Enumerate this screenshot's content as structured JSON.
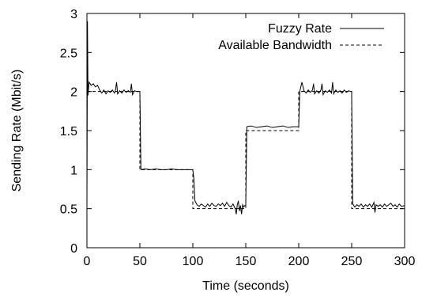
{
  "chart_data": {
    "type": "line",
    "title": "",
    "xlabel": "Time (seconds)",
    "ylabel": "Sending Rate (Mbit/s)",
    "xlim": [
      0,
      300
    ],
    "ylim": [
      0,
      3
    ],
    "xticks": [
      "0",
      "50",
      "100",
      "150",
      "200",
      "250",
      "300"
    ],
    "yticks": [
      "0",
      "0.5",
      "1",
      "1.5",
      "2",
      "2.5",
      "3"
    ],
    "grid": false,
    "legend_position": "top-right",
    "series": [
      {
        "name": "Fuzzy Rate",
        "style": "solid",
        "color": "#000000",
        "points": [
          [
            0,
            0.5
          ],
          [
            0.5,
            2.9
          ],
          [
            1,
            1.95
          ],
          [
            2,
            2.12
          ],
          [
            4,
            2.08
          ],
          [
            6,
            2.1
          ],
          [
            8,
            2.06
          ],
          [
            10,
            2.08
          ],
          [
            12,
            2.02
          ],
          [
            14,
            1.98
          ],
          [
            16,
            2.02
          ],
          [
            18,
            1.97
          ],
          [
            20,
            2.01
          ],
          [
            22,
            1.99
          ],
          [
            24,
            2.02
          ],
          [
            26,
            1.98
          ],
          [
            27,
            2.02
          ],
          [
            28,
            2.12
          ],
          [
            29,
            1.97
          ],
          [
            31,
            2.01
          ],
          [
            33,
            1.98
          ],
          [
            35,
            2.02
          ],
          [
            37,
            1.99
          ],
          [
            39,
            2.01
          ],
          [
            41,
            1.99
          ],
          [
            42,
            2.1
          ],
          [
            43,
            1.96
          ],
          [
            45,
            2.01
          ],
          [
            47,
            2.0
          ],
          [
            49,
            2.0
          ],
          [
            50,
            2.0
          ],
          [
            51,
            1.0
          ],
          [
            55,
            1.01
          ],
          [
            60,
            1.0
          ],
          [
            65,
            1.01
          ],
          [
            70,
            1.0
          ],
          [
            75,
            1.0
          ],
          [
            80,
            1.01
          ],
          [
            85,
            1.0
          ],
          [
            90,
            1.0
          ],
          [
            95,
            1.0
          ],
          [
            100,
            1.0
          ],
          [
            101,
            0.88
          ],
          [
            102,
            0.6
          ],
          [
            104,
            0.55
          ],
          [
            106,
            0.53
          ],
          [
            108,
            0.56
          ],
          [
            110,
            0.54
          ],
          [
            112,
            0.52
          ],
          [
            114,
            0.56
          ],
          [
            116,
            0.53
          ],
          [
            118,
            0.57
          ],
          [
            120,
            0.54
          ],
          [
            122,
            0.53
          ],
          [
            124,
            0.56
          ],
          [
            126,
            0.54
          ],
          [
            128,
            0.57
          ],
          [
            130,
            0.53
          ],
          [
            132,
            0.58
          ],
          [
            134,
            0.54
          ],
          [
            136,
            0.52
          ],
          [
            138,
            0.56
          ],
          [
            140,
            0.5
          ],
          [
            141,
            0.43
          ],
          [
            142,
            0.55
          ],
          [
            143,
            0.6
          ],
          [
            144,
            0.47
          ],
          [
            145,
            0.54
          ],
          [
            146,
            0.43
          ],
          [
            147,
            0.55
          ],
          [
            148,
            0.52
          ],
          [
            149,
            0.54
          ],
          [
            150,
            0.54
          ],
          [
            151,
            1.55
          ],
          [
            155,
            1.56
          ],
          [
            160,
            1.54
          ],
          [
            165,
            1.55
          ],
          [
            170,
            1.56
          ],
          [
            175,
            1.54
          ],
          [
            180,
            1.55
          ],
          [
            185,
            1.56
          ],
          [
            190,
            1.54
          ],
          [
            195,
            1.55
          ],
          [
            200,
            1.55
          ],
          [
            201,
            2.0
          ],
          [
            203,
            2.12
          ],
          [
            205,
            2.01
          ],
          [
            207,
            1.98
          ],
          [
            209,
            2.02
          ],
          [
            211,
            1.99
          ],
          [
            213,
            2.02
          ],
          [
            214,
            2.1
          ],
          [
            215,
            1.97
          ],
          [
            217,
            2.01
          ],
          [
            219,
            1.98
          ],
          [
            221,
            2.02
          ],
          [
            222,
            2.1
          ],
          [
            223,
            1.96
          ],
          [
            225,
            2.01
          ],
          [
            227,
            1.99
          ],
          [
            229,
            2.02
          ],
          [
            231,
            1.98
          ],
          [
            232,
            2.12
          ],
          [
            233,
            1.97
          ],
          [
            235,
            2.02
          ],
          [
            237,
            1.99
          ],
          [
            239,
            2.01
          ],
          [
            241,
            1.98
          ],
          [
            243,
            2.02
          ],
          [
            245,
            1.99
          ],
          [
            247,
            2.01
          ],
          [
            249,
            2.0
          ],
          [
            250,
            2.0
          ],
          [
            251,
            0.56
          ],
          [
            253,
            0.52
          ],
          [
            255,
            0.55
          ],
          [
            257,
            0.53
          ],
          [
            259,
            0.56
          ],
          [
            261,
            0.52
          ],
          [
            263,
            0.55
          ],
          [
            265,
            0.53
          ],
          [
            267,
            0.56
          ],
          [
            269,
            0.52
          ],
          [
            271,
            0.58
          ],
          [
            272,
            0.45
          ],
          [
            273,
            0.55
          ],
          [
            275,
            0.53
          ],
          [
            277,
            0.55
          ],
          [
            279,
            0.52
          ],
          [
            281,
            0.56
          ],
          [
            283,
            0.53
          ],
          [
            285,
            0.55
          ],
          [
            287,
            0.57
          ],
          [
            289,
            0.53
          ],
          [
            291,
            0.55
          ],
          [
            293,
            0.52
          ],
          [
            295,
            0.56
          ],
          [
            297,
            0.53
          ],
          [
            300,
            0.54
          ]
        ]
      },
      {
        "name": "Available Bandwidth",
        "style": "dashed",
        "color": "#000000",
        "points": [
          [
            0,
            2.0
          ],
          [
            50,
            2.0
          ],
          [
            50,
            1.0
          ],
          [
            100,
            1.0
          ],
          [
            100,
            0.5
          ],
          [
            150,
            0.5
          ],
          [
            150,
            1.5
          ],
          [
            200,
            1.5
          ],
          [
            200,
            2.0
          ],
          [
            250,
            2.0
          ],
          [
            250,
            0.5
          ],
          [
            300,
            0.5
          ]
        ]
      }
    ]
  }
}
